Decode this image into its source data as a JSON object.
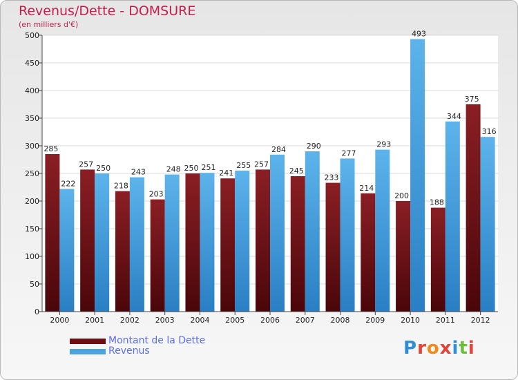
{
  "header": {
    "title": "Revenus/Dette - DOMSURE",
    "subtitle": "(en milliers d'€)"
  },
  "logo": {
    "text": "Proxiti",
    "letter_colors": [
      "#2f8fd6",
      "#e0453a",
      "#f08a1c",
      "#e0453a",
      "#2f8fd6",
      "#6cbf3a",
      "#e0453a"
    ]
  },
  "colors": {
    "dette": "#6b0f14",
    "revenus": "#4aa3df",
    "plot_background": "#ffffff",
    "grid": "#d9d9d9"
  },
  "chart_data": {
    "type": "bar",
    "title": "Revenus/Dette - DOMSURE",
    "subtitle": "(en milliers d'€)",
    "categories": [
      "2000",
      "2001",
      "2002",
      "2003",
      "2004",
      "2005",
      "2006",
      "2007",
      "2008",
      "2009",
      "2010",
      "2011",
      "2012"
    ],
    "series": [
      {
        "name": "Montant de la Dette",
        "values": [
          285,
          257,
          218,
          203,
          250,
          241,
          257,
          245,
          233,
          214,
          200,
          188,
          375
        ]
      },
      {
        "name": "Revenus",
        "values": [
          222,
          250,
          243,
          248,
          251,
          255,
          284,
          290,
          277,
          293,
          493,
          344,
          316
        ]
      }
    ],
    "ylim": [
      0,
      500
    ],
    "yticks": [
      0,
      50,
      100,
      150,
      200,
      250,
      300,
      350,
      400,
      450,
      500
    ],
    "grid": true,
    "legend_position": "bottom-left"
  }
}
